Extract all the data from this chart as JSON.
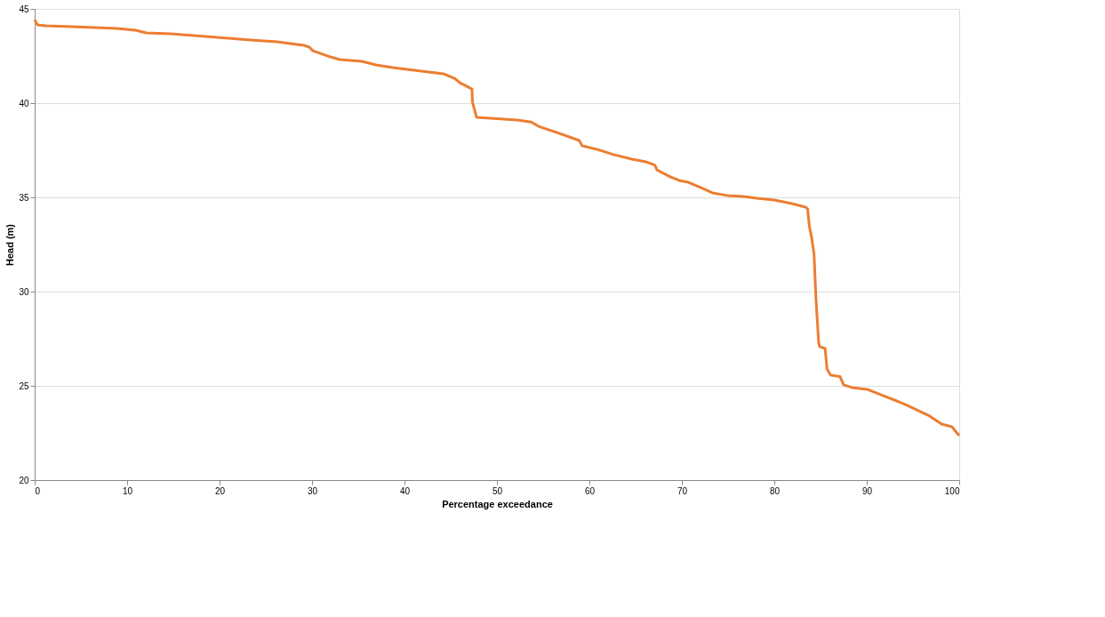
{
  "chart_data": {
    "type": "line",
    "xlabel": "Percentage exceedance",
    "ylabel": "Head (m)",
    "xlim": [
      0,
      100
    ],
    "xticks": [
      0,
      10,
      20,
      30,
      40,
      50,
      60,
      70,
      80,
      90,
      100
    ],
    "ylim": [
      20,
      45
    ],
    "yticks": [
      20,
      25,
      30,
      35,
      40,
      45
    ],
    "grid": "y",
    "marker": "none",
    "line_style": "solid",
    "series": [
      {
        "color": "#ed7d31",
        "x": [
          0,
          0.3,
          1.2,
          4.1,
          8.9,
          10.9,
          12.1,
          14.7,
          18.5,
          23.3,
          26.2,
          29.1,
          29.7,
          30.1,
          32,
          33,
          35.4,
          36.9,
          38.7,
          42.6,
          44.2,
          45.4,
          46,
          47.3,
          47.35,
          47.8,
          52.2,
          53.7,
          54.5,
          56.5,
          58.9,
          59.2,
          60.8,
          62.7,
          64.6,
          66.1,
          67.1,
          67.3,
          68.8,
          69.7,
          70.7,
          72.3,
          73.3,
          74.9,
          76.7,
          78.1,
          80,
          81.9,
          83.4,
          83.6,
          83.8,
          84.0,
          84.3,
          84.5,
          84.8,
          84.9,
          85.5,
          85.7,
          86.1,
          87.1,
          87.5,
          88.4,
          90.1,
          91.5,
          93.5,
          94.4,
          96.8,
          98.1,
          99.2,
          100
        ],
        "values": [
          44.43,
          44.15,
          44.1,
          44.06,
          43.96,
          43.87,
          43.73,
          43.68,
          43.54,
          43.35,
          43.25,
          43.07,
          42.97,
          42.78,
          42.45,
          42.31,
          42.22,
          42.03,
          41.89,
          41.65,
          41.56,
          41.32,
          41.08,
          40.75,
          40.05,
          39.25,
          39.1,
          39.0,
          38.77,
          38.44,
          38.02,
          37.74,
          37.55,
          37.26,
          37.03,
          36.89,
          36.7,
          36.46,
          36.08,
          35.9,
          35.8,
          35.47,
          35.24,
          35.1,
          35.05,
          34.95,
          34.86,
          34.67,
          34.48,
          34.39,
          33.44,
          32.97,
          32.0,
          29.67,
          27.3,
          27.08,
          26.98,
          25.9,
          25.57,
          25.5,
          25.05,
          24.91,
          24.81,
          24.53,
          24.15,
          23.96,
          23.4,
          22.97,
          22.83,
          22.36
        ]
      }
    ]
  }
}
